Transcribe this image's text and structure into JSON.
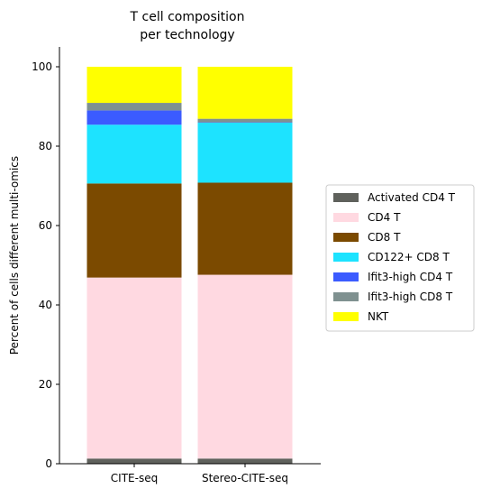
{
  "chart_data": {
    "type": "stacked_bar",
    "title": "T cell composition\nper technology",
    "y_label": "Percent of cells different multi-omics",
    "categories": [
      "CITE-seq",
      "Stereo-CITE-seq"
    ],
    "series": [
      {
        "name": "Activated CD4 T",
        "color": "#5f615c",
        "values": [
          1.3,
          1.3
        ]
      },
      {
        "name": "CD4 T",
        "color": "#ffd9e1",
        "values": [
          45.6,
          46.3
        ]
      },
      {
        "name": "CD8 T",
        "color": "#7b4a00",
        "values": [
          23.7,
          23.2
        ]
      },
      {
        "name": "CD122+ CD8 T",
        "color": "#1de3ff",
        "values": [
          14.8,
          15.1
        ]
      },
      {
        "name": "Ifit3-high CD4 T",
        "color": "#3b5bff",
        "values": [
          3.6,
          0.1
        ]
      },
      {
        "name": "Ifit3-high CD8 T",
        "color": "#7f9190",
        "values": [
          1.9,
          0.9
        ]
      },
      {
        "name": "NKT",
        "color": "#ffff00",
        "values": [
          9.1,
          13.1
        ]
      }
    ],
    "ylim": [
      0,
      105
    ],
    "yticks": [
      0,
      20,
      40,
      60,
      80,
      100
    ],
    "legend": "right"
  }
}
